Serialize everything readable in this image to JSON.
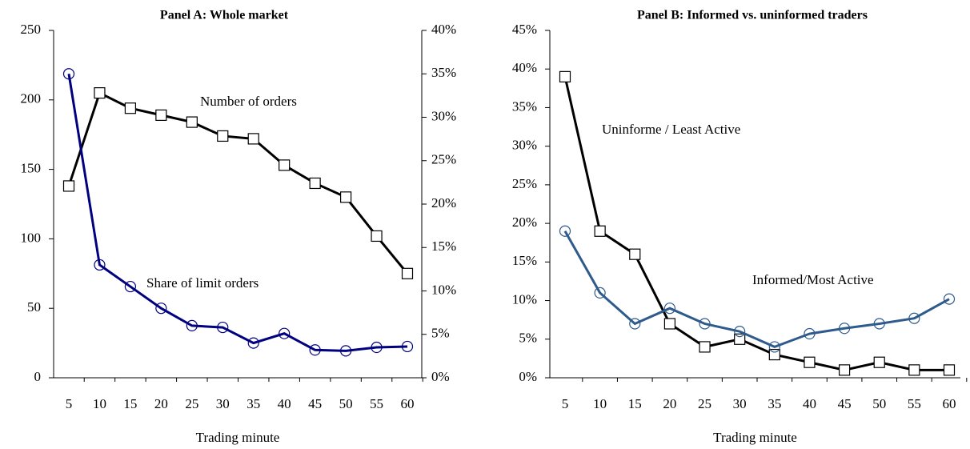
{
  "chart_data": [
    {
      "type": "line",
      "title": "Panel A: Whole market",
      "xlabel": "Trading minute",
      "categories": [
        "5",
        "10",
        "15",
        "20",
        "25",
        "30",
        "35",
        "40",
        "45",
        "50",
        "55",
        "60"
      ],
      "ylim": [
        0,
        250
      ],
      "yticks": [
        0,
        50,
        100,
        150,
        200,
        250
      ],
      "y2lim": [
        0,
        40
      ],
      "y2ticks": [
        {
          "value": 0,
          "label": "0%"
        },
        {
          "value": 5,
          "label": "5%"
        },
        {
          "value": 10,
          "label": "10%"
        },
        {
          "value": 15,
          "label": "15%"
        },
        {
          "value": 20,
          "label": "20%"
        },
        {
          "value": 25,
          "label": "25%"
        },
        {
          "value": 30,
          "label": "30%"
        },
        {
          "value": 35,
          "label": "35%"
        },
        {
          "value": 40,
          "label": "40%"
        }
      ],
      "series": [
        {
          "name": "Number of orders",
          "color": "#000000",
          "marker": "square",
          "values": [
            138,
            205,
            194,
            189,
            184,
            174,
            172,
            153,
            140,
            130,
            102,
            75
          ]
        },
        {
          "name": "Share of limit orders",
          "color": "#000080",
          "marker": "circle",
          "axis": "y2",
          "values": [
            35,
            13,
            10.5,
            8,
            6,
            5.8,
            4,
            5.1,
            3.2,
            3.1,
            3.5,
            3.6
          ]
        }
      ]
    },
    {
      "type": "line",
      "title": "Panel B: Informed vs. uninformed traders",
      "xlabel": "Trading minute",
      "categories": [
        "5",
        "10",
        "15",
        "20",
        "25",
        "30",
        "35",
        "40",
        "45",
        "50",
        "55",
        "60"
      ],
      "ylim": [
        0,
        45
      ],
      "yticks": [
        {
          "value": 0,
          "label": "0%"
        },
        {
          "value": 5,
          "label": "5%"
        },
        {
          "value": 10,
          "label": "10%"
        },
        {
          "value": 15,
          "label": "15%"
        },
        {
          "value": 20,
          "label": "20%"
        },
        {
          "value": 25,
          "label": "25%"
        },
        {
          "value": 30,
          "label": "30%"
        },
        {
          "value": 35,
          "label": "35%"
        },
        {
          "value": 40,
          "label": "40%"
        },
        {
          "value": 45,
          "label": "45%"
        }
      ],
      "series": [
        {
          "name": "Uninforme / Least Active",
          "color": "#000000",
          "marker": "square",
          "values": [
            39,
            19,
            16,
            7,
            4,
            5,
            3,
            2,
            1,
            2,
            1,
            1
          ]
        },
        {
          "name": "Informed/Most Active",
          "color": "#2e5a8c",
          "marker": "circle",
          "values": [
            19,
            11,
            7,
            9,
            7,
            6,
            4,
            5.7,
            6.4,
            7,
            7.7,
            10.2
          ]
        }
      ]
    }
  ]
}
